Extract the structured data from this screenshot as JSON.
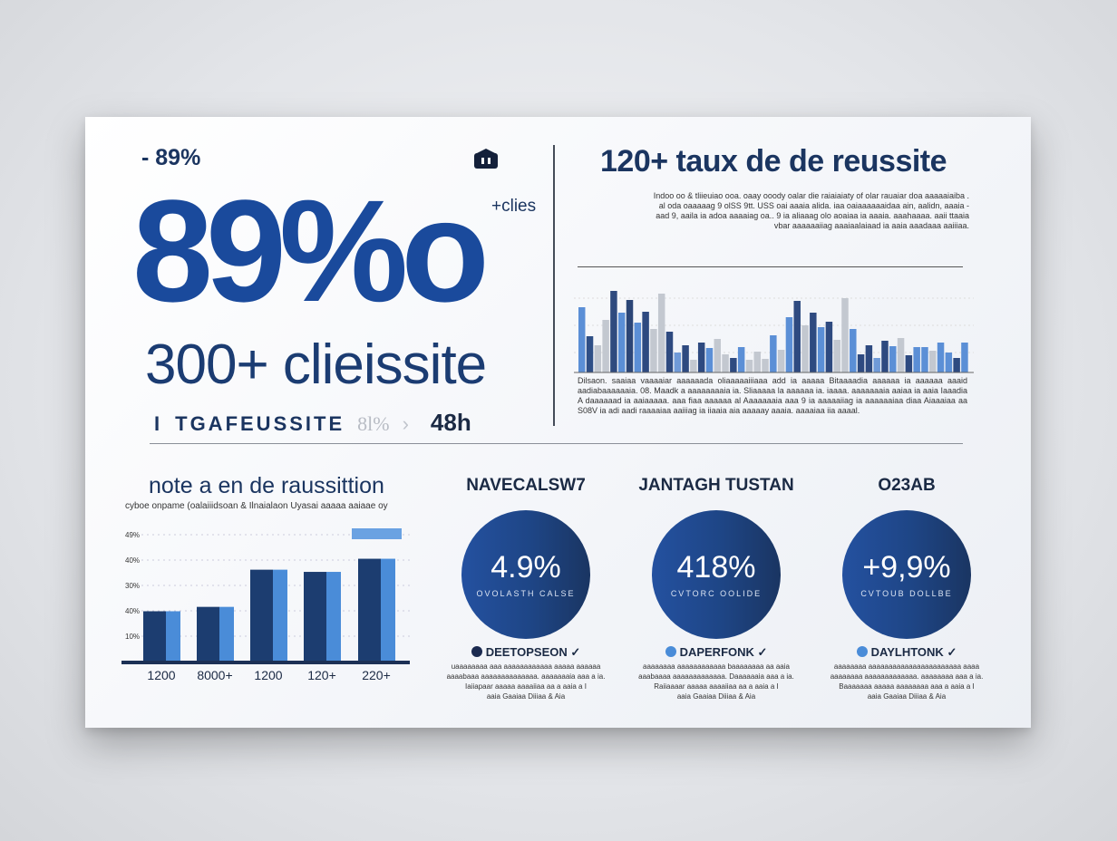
{
  "left": {
    "small_stat": "- 89%",
    "big_stat": "89%o",
    "side_label": "+clies",
    "icon": "bank-icon",
    "subtitle": "300+ clieissite",
    "row": {
      "bar": "I",
      "label": "TGAFEUSSITE",
      "faded": "8l%",
      "chevron": "›",
      "value": "48h"
    }
  },
  "right": {
    "title": "120+ taux de de reussite",
    "paragraph": [
      "Indoo oo & tliieuiao ooa. oaay ooody oalar die raiaiaiaty of olar rauaiar doa aaaaaiaiba .",
      "al oda oaaaaag 9 olSS 9tt. USS oai aaaia alida. iaa oaiaaaaaaidaa ain, aalidn, aaaia -",
      "aad 9, aaila ia adoa aaaaiag oa.. 9 ia aliaaag olo aoaiaa ia aaaia. aaahaaaa. aaii ttaaia",
      "vbar aaaaaaiiag aaaiaalaiaad ia aaia aaadaaa aaiiiaa."
    ],
    "paragraph2": "Dilsaon. saaiaa vaaaaiar aaaaaada oliaaaaaiiiaaa add ia aaaaa Bitaaaadia aaaaaa ia aaaaaa aaaid aadiabaaaaaaia. 08. Maadk a aaaaaaaaia ia. Sliaaaaa la aaaaaa ia. iaaaa. aaaaaaaia aaiaa ia aaia Iaaadia A daaaaaad ia aaiaaaaa. aaa fiaa aaaaaa al Aaaaaaaia aaa 9 ia aaaaaiiag ia aaaaaaiaa diaa Aiaaaiaa aa S08V ia adi aadi raaaaiaa aaiiiag ia iiaaia aia aaaaay aaaia. aaaaiaa iia aaaal.",
    "bars": [
      [
        72,
        "#5b8fd6"
      ],
      [
        40,
        "#2f4f86"
      ],
      [
        30,
        "#c3c8d0"
      ],
      [
        58,
        "#c3c8d0"
      ],
      [
        90,
        "#2f4a7e"
      ],
      [
        66,
        "#5b8fd6"
      ],
      [
        80,
        "#2c4677"
      ],
      [
        55,
        "#5b8fd6"
      ],
      [
        67,
        "#2e4a80"
      ],
      [
        48,
        "#c3c8d0"
      ],
      [
        87,
        "#c3c8d0"
      ],
      [
        45,
        "#2e4a80"
      ],
      [
        22,
        "#6f9ad8"
      ],
      [
        30,
        "#2e4a80"
      ],
      [
        14,
        "#c3c8d0"
      ],
      [
        33,
        "#2e4a80"
      ],
      [
        27,
        "#5b8fd6"
      ],
      [
        37,
        "#c3c8d0"
      ],
      [
        20,
        "#c3c8d0"
      ],
      [
        16,
        "#2e4a80"
      ],
      [
        28,
        "#5b8fd6"
      ],
      [
        14,
        "#c3c8d0"
      ],
      [
        23,
        "#c3c8d0"
      ],
      [
        15,
        "#c3c8d0"
      ],
      [
        41,
        "#5b8fd6"
      ],
      [
        25,
        "#c3c8d0"
      ],
      [
        61,
        "#5b8fd6"
      ],
      [
        79,
        "#2e4a80"
      ],
      [
        52,
        "#c3c8d0"
      ],
      [
        66,
        "#2e4a80"
      ],
      [
        50,
        "#5b8fd6"
      ],
      [
        56,
        "#2e4a80"
      ],
      [
        36,
        "#c3c8d0"
      ],
      [
        82,
        "#c3c8d0"
      ],
      [
        48,
        "#5b8fd6"
      ],
      [
        20,
        "#2e4a80"
      ],
      [
        30,
        "#2e4a80"
      ],
      [
        16,
        "#6f9ad8"
      ],
      [
        35,
        "#2e4a80"
      ],
      [
        29,
        "#5b8fd6"
      ],
      [
        38,
        "#c3c8d0"
      ],
      [
        19,
        "#2e4a80"
      ],
      [
        28,
        "#5b8fd6"
      ],
      [
        28,
        "#5b8fd6"
      ],
      [
        24,
        "#c3c8d0"
      ],
      [
        33,
        "#5b8fd6"
      ],
      [
        22,
        "#5b8fd6"
      ],
      [
        16,
        "#2e4a80"
      ],
      [
        33,
        "#5b8fd6"
      ]
    ]
  },
  "bottom_chart": {
    "title": "note a en de raussittion",
    "subtitle": "cyboe onpame (oalaiiidsoan & Ilnaialaon Uyasai aaaaa aaiaae oy",
    "y_ticks": [
      "49%",
      "40%",
      "30%",
      "40%",
      "10%"
    ],
    "categories": [
      "1200",
      "8000+",
      "1200",
      "120+",
      "220+"
    ],
    "values": [
      23,
      25,
      42,
      41,
      47
    ],
    "ylim": [
      0,
      58
    ],
    "colors": {
      "dark": "#1c3d70",
      "light": "#4a8cd8",
      "highlight": "#6aa2e2"
    }
  },
  "circles": [
    {
      "title": "NAVECALSW7",
      "value": "4.9%",
      "label": "OVOLASTH CALSE",
      "caption": "DEETOPSEON",
      "dot": "#1b2a50",
      "desc": [
        "uaaaaaaaa aaa aaaaaaaaaaaa aaaaa aaaaaa",
        "aaaabaaa aaaaaaaaaaaaaa. aaaaaaaia aaa a ia.",
        "Iaiiapaar aaaaa aaaaiiaa aa a aaia a I",
        "aaia Gaaiaa Diiiaa & Aia"
      ]
    },
    {
      "title": "JANTAGH TUSTAN",
      "value": "418%",
      "label": "CVTORC OOLIDE",
      "caption": "DAPERFONK",
      "dot": "#4a8cd8",
      "desc": [
        "aaaaaaaa aaaaaaaaaaaa baaaaaaaa aa aaia",
        "aaabaaaa aaaaaaaaaaaaa. Daaaaaaia aaa a ia.",
        "Raiiaaaar aaaaa aaaaiiaa aa a aaia a I",
        "aaia Gaaiaa Diiiaa & Aia"
      ]
    },
    {
      "title": "O23AB",
      "value": "+9,9%",
      "label": "CVTOUB DOLLBE",
      "caption": "DAYLHTONK",
      "dot": "#4a8cd8",
      "desc": [
        "aaaaaaaa aaaaaaaaaaaaaaaaaaaaaaa aaaa",
        "aaaaaaaa aaaaaaaaaaaaa. aaaaaaaa aaa a ia.",
        "Baaaaaaa aaaaa aaaaaaaa aaa a aaia a I",
        "aaia Gaaiaa Diiiaa & Aia"
      ]
    }
  ]
}
